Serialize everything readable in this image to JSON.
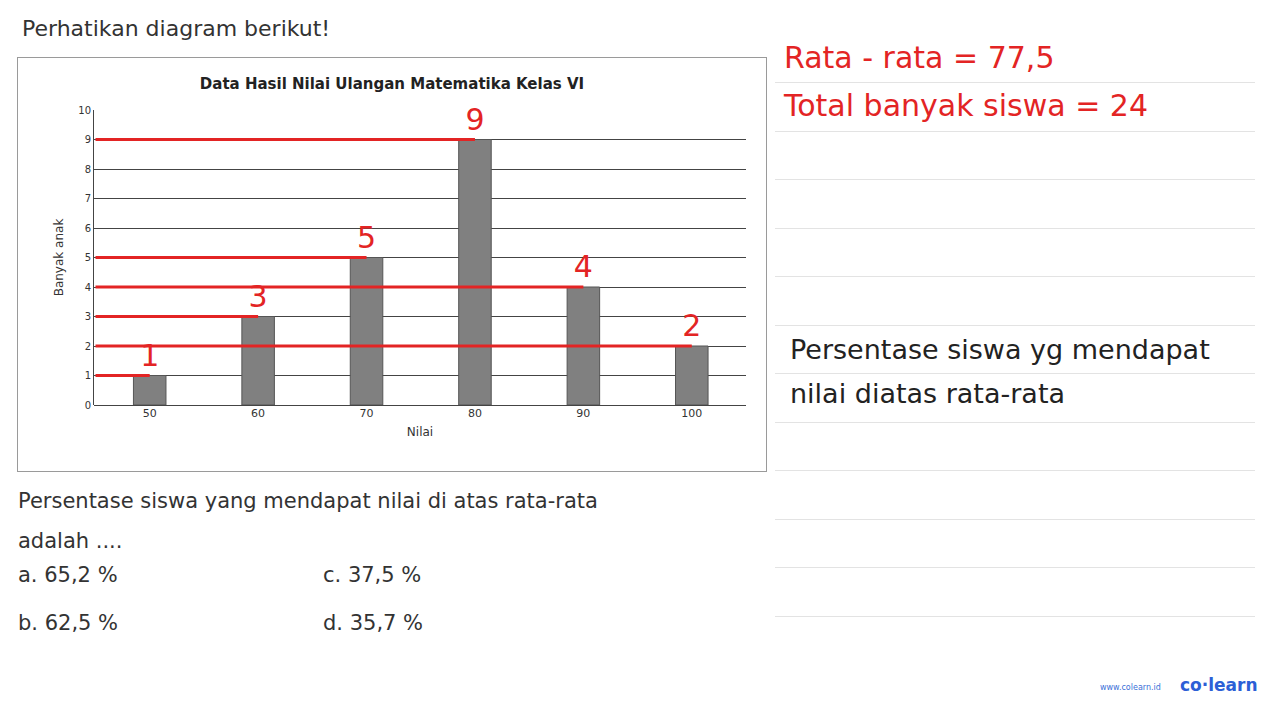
{
  "header": "Perhatikan diagram berikut!",
  "chart_data": {
    "type": "bar",
    "title": "Data Hasil Nilai Ulangan Matematika Kelas VI",
    "x_label": "Nilai",
    "y_label": "Banyak anak",
    "categories": [
      "50",
      "60",
      "70",
      "80",
      "90",
      "100"
    ],
    "values": [
      1,
      3,
      5,
      9,
      4,
      2
    ],
    "color": "#808080",
    "ylim": [
      0,
      10
    ],
    "yticks": [
      0,
      1,
      2,
      3,
      4,
      5,
      6,
      7,
      8,
      9,
      10
    ],
    "grid": true,
    "data_labels": true
  },
  "notes": {
    "red": [
      "Rata - rata = 77,5",
      "Total banyak siswa = 24"
    ],
    "black": [
      "Persentase siswa yg mendapat",
      "nilai diatas rata-rata"
    ]
  },
  "question": {
    "lines": [
      "Persentase siswa yang mendapat nilai di atas rata-rata",
      "adalah ...."
    ],
    "options": [
      [
        "a.",
        "65,2 %"
      ],
      [
        "b.",
        "62,5 %"
      ],
      [
        "c.",
        "37,5 %"
      ],
      [
        "d.",
        "35,7 %"
      ]
    ]
  },
  "footer": {
    "url": "www.colearn.id",
    "brand": "co·learn"
  }
}
